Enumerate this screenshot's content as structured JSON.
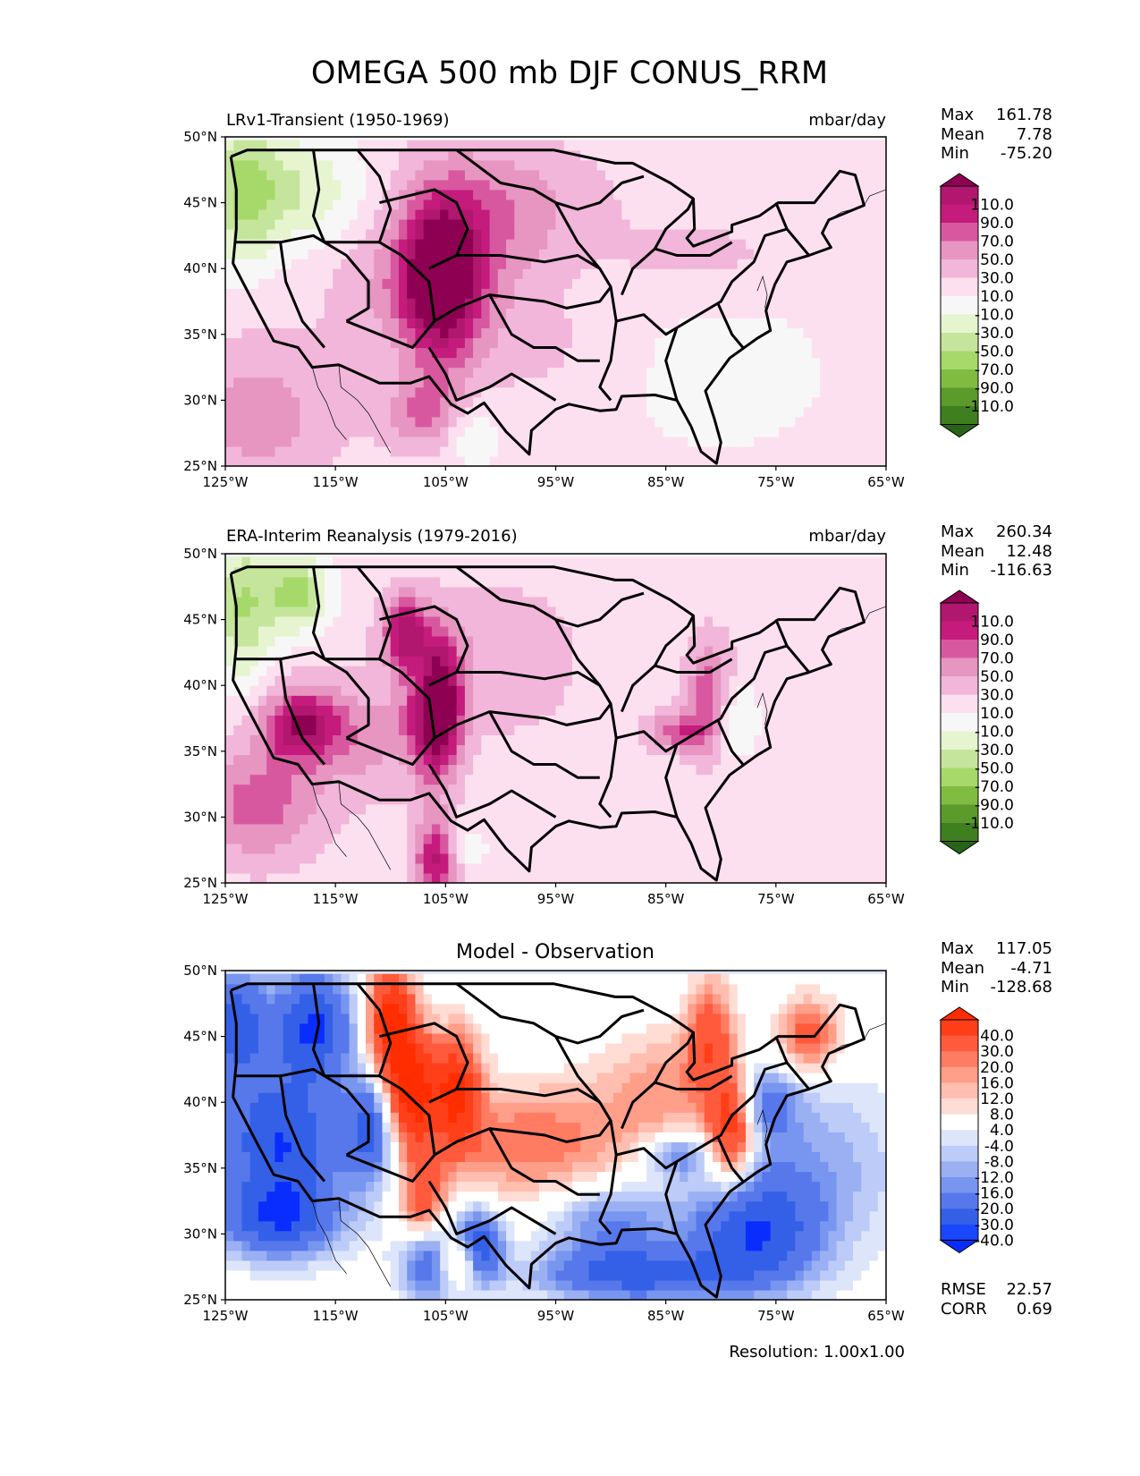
{
  "title": "OMEGA 500 mb DJF CONUS_RRM",
  "resolution": "Resolution: 1.00x1.00",
  "chart_data": [
    {
      "type": "heatmap",
      "subtitle": "LRv1-Transient (1950-1969)",
      "units": "mbar/day",
      "stats": [
        [
          "Max",
          "161.78"
        ],
        [
          "Mean",
          "7.78"
        ],
        [
          "Min",
          "-75.20"
        ]
      ],
      "colorbar": {
        "labels": [
          "110.0",
          "90.0",
          "70.0",
          "50.0",
          "30.0",
          "10.0",
          "-10.0",
          "-30.0",
          "-50.0",
          "-70.0",
          "-90.0",
          "-110.0"
        ],
        "colors": [
          "#8e0152",
          "#b1176f",
          "#c51b7d",
          "#d8589f",
          "#e795c1",
          "#f1b6da",
          "#fde0ef",
          "#f7f7f7",
          "#e6f5d0",
          "#c6e59c",
          "#a6d96a",
          "#7fbc41",
          "#5b9a2b",
          "#3f7f1f",
          "#276419"
        ]
      },
      "x_ticks": [
        "125°W",
        "115°W",
        "105°W",
        "95°W",
        "85°W",
        "75°W",
        "65°W"
      ],
      "y_ticks": [
        "50°N",
        "45°N",
        "40°N",
        "35°N",
        "30°N",
        "25°N"
      ],
      "lon_range": [
        -125,
        -65
      ],
      "lat_range": [
        25,
        50
      ],
      "blobs": [
        [
          -105.5,
          39,
          2.5,
          4,
          150
        ],
        [
          -103,
          42,
          5,
          5,
          40
        ],
        [
          -122,
          29,
          5,
          4,
          40
        ],
        [
          -106,
          29,
          3,
          2,
          60
        ],
        [
          -98,
          45,
          6,
          3,
          25
        ],
        [
          -82,
          41,
          6,
          2,
          20
        ],
        [
          -123.5,
          46,
          2.5,
          4,
          -65
        ],
        [
          -118,
          46,
          4,
          3,
          -45
        ],
        [
          -112,
          38,
          3,
          3,
          20
        ],
        [
          -103,
          28,
          2,
          2,
          -45
        ],
        [
          -80,
          32,
          10,
          6,
          -15
        ],
        [
          -96,
          34,
          5,
          3,
          15
        ]
      ]
    },
    {
      "type": "heatmap",
      "subtitle": "ERA-Interim Reanalysis (1979-2016)",
      "units": "mbar/day",
      "stats": [
        [
          "Max",
          "260.34"
        ],
        [
          "Mean",
          "12.48"
        ],
        [
          "Min",
          "-116.63"
        ]
      ],
      "colorbar": {
        "labels": [
          "110.0",
          "90.0",
          "70.0",
          "50.0",
          "30.0",
          "10.0",
          "-10.0",
          "-30.0",
          "-50.0",
          "-70.0",
          "-90.0",
          "-110.0"
        ],
        "colors": [
          "#8e0152",
          "#b1176f",
          "#c51b7d",
          "#d8589f",
          "#e795c1",
          "#f1b6da",
          "#fde0ef",
          "#f7f7f7",
          "#e6f5d0",
          "#c6e59c",
          "#a6d96a",
          "#7fbc41",
          "#5b9a2b",
          "#3f7f1f",
          "#276419"
        ]
      },
      "x_ticks": [
        "125°W",
        "115°W",
        "105°W",
        "95°W",
        "85°W",
        "75°W",
        "65°W"
      ],
      "y_ticks": [
        "50°N",
        "45°N",
        "40°N",
        "35°N",
        "30°N",
        "25°N"
      ],
      "lon_range": [
        -125,
        -65
      ],
      "lat_range": [
        25,
        50
      ],
      "blobs": [
        [
          -106,
          38.5,
          1.6,
          3.5,
          180
        ],
        [
          -118,
          37,
          2.5,
          2,
          110
        ],
        [
          -108.5,
          44,
          1.5,
          2,
          100
        ],
        [
          -105.5,
          27,
          1.5,
          2,
          120
        ],
        [
          -122,
          31,
          4,
          3,
          60
        ],
        [
          -81,
          39,
          1.5,
          3,
          70
        ],
        [
          -84,
          36.5,
          2,
          1,
          60
        ],
        [
          -118.5,
          47,
          2,
          2,
          -80
        ],
        [
          -123.5,
          46,
          2,
          4,
          -70
        ],
        [
          -107,
          41,
          1,
          3,
          -50
        ],
        [
          -104,
          27.5,
          1.5,
          1.5,
          -60
        ],
        [
          -79,
          37.5,
          1.5,
          2,
          -45
        ],
        [
          -100,
          42,
          5,
          4,
          25
        ],
        [
          -112,
          36,
          3,
          3,
          35
        ]
      ]
    },
    {
      "type": "heatmap",
      "subtitle": "Model - Observation",
      "units": "",
      "stats": [
        [
          "Max",
          "117.05"
        ],
        [
          "Mean",
          "-4.71"
        ],
        [
          "Min",
          "-128.68"
        ]
      ],
      "extra_stats": [
        [
          "RMSE",
          "22.57"
        ],
        [
          "CORR",
          "0.69"
        ]
      ],
      "colorbar": {
        "labels": [
          "40.0",
          "30.0",
          "20.0",
          "16.0",
          "12.0",
          "8.0",
          "4.0",
          "-4.0",
          "-8.0",
          "-12.0",
          "-16.0",
          "-20.0",
          "-30.0",
          "-40.0"
        ],
        "colors": [
          "#ff2d00",
          "#ff3f19",
          "#ff5a3c",
          "#ff7c63",
          "#ff9e89",
          "#ffbeb0",
          "#ffdcd4",
          "#ffffff",
          "#dde5fb",
          "#bccbf7",
          "#9ab0f3",
          "#7895ef",
          "#5678eb",
          "#3460e8",
          "#1b47ff",
          "#0a2dff"
        ]
      },
      "x_ticks": [
        "125°W",
        "115°W",
        "105°W",
        "95°W",
        "85°W",
        "75°W",
        "65°W"
      ],
      "y_ticks": [
        "50°N",
        "45°N",
        "40°N",
        "35°N",
        "30°N",
        "25°N"
      ],
      "lon_range": [
        -125,
        -65
      ],
      "lat_range": [
        25,
        50
      ],
      "blobs": [
        [
          -110,
          46,
          1.5,
          3,
          45
        ],
        [
          -108,
          41,
          1.5,
          3,
          45
        ],
        [
          -104,
          41,
          1.5,
          3,
          40
        ],
        [
          -97,
          37,
          6,
          3,
          20
        ],
        [
          -85,
          41,
          4,
          3,
          15
        ],
        [
          -79,
          38,
          1.5,
          3,
          40
        ],
        [
          -81,
          45,
          1.5,
          3,
          25
        ],
        [
          -72,
          45,
          2,
          2,
          25
        ],
        [
          -104,
          28,
          1.5,
          1.5,
          45
        ],
        [
          -107,
          32,
          1.5,
          3,
          25
        ],
        [
          -120,
          37,
          4,
          4,
          -40
        ],
        [
          -117,
          46,
          2.5,
          3,
          -40
        ],
        [
          -124,
          46,
          2,
          3,
          -35
        ],
        [
          -112,
          38,
          1.5,
          3,
          -30
        ],
        [
          -106,
          28,
          2,
          2,
          -45
        ],
        [
          -102,
          29,
          1.5,
          2,
          -40
        ],
        [
          -88,
          27,
          6,
          1.5,
          -35
        ],
        [
          -77,
          30,
          4,
          3,
          -35
        ],
        [
          -72,
          35,
          6,
          5,
          -15
        ],
        [
          -90,
          31,
          4,
          2,
          -20
        ],
        [
          -120,
          31,
          4,
          2,
          -30
        ],
        [
          -84,
          36,
          2,
          1.2,
          -20
        ],
        [
          -76,
          40,
          2,
          2,
          -20
        ]
      ]
    }
  ]
}
